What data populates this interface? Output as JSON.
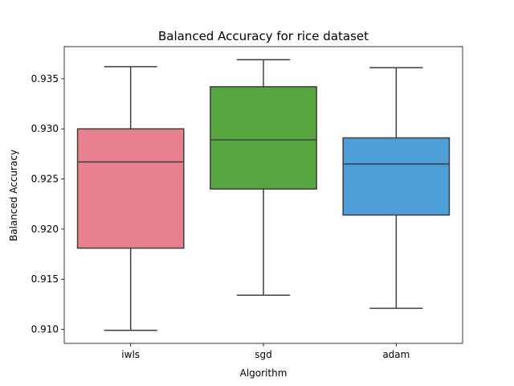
{
  "chart_data": {
    "type": "box",
    "title": "Balanced Accuracy for rice dataset",
    "xlabel": "Algorithm",
    "ylabel": "Balanced Accuracy",
    "ylim": [
      0.9086,
      0.9382
    ],
    "yticks": [
      0.91,
      0.915,
      0.92,
      0.925,
      0.93,
      0.935
    ],
    "ytick_labels": [
      "0.910",
      "0.915",
      "0.920",
      "0.925",
      "0.930",
      "0.935"
    ],
    "grid": false,
    "categories": [
      "iwls",
      "sgd",
      "adam"
    ],
    "boxes": [
      {
        "category": "iwls",
        "whisker_low": 0.9099,
        "q1": 0.9181,
        "median": 0.9267,
        "q3": 0.93,
        "whisker_high": 0.9362,
        "color": "#e8808f"
      },
      {
        "category": "sgd",
        "whisker_low": 0.9134,
        "q1": 0.924,
        "median": 0.9289,
        "q3": 0.9342,
        "whisker_high": 0.9369,
        "color": "#57a53f"
      },
      {
        "category": "adam",
        "whisker_low": 0.9121,
        "q1": 0.9214,
        "median": 0.9265,
        "q3": 0.9291,
        "whisker_high": 0.9361,
        "color": "#4e9fd8"
      }
    ]
  }
}
